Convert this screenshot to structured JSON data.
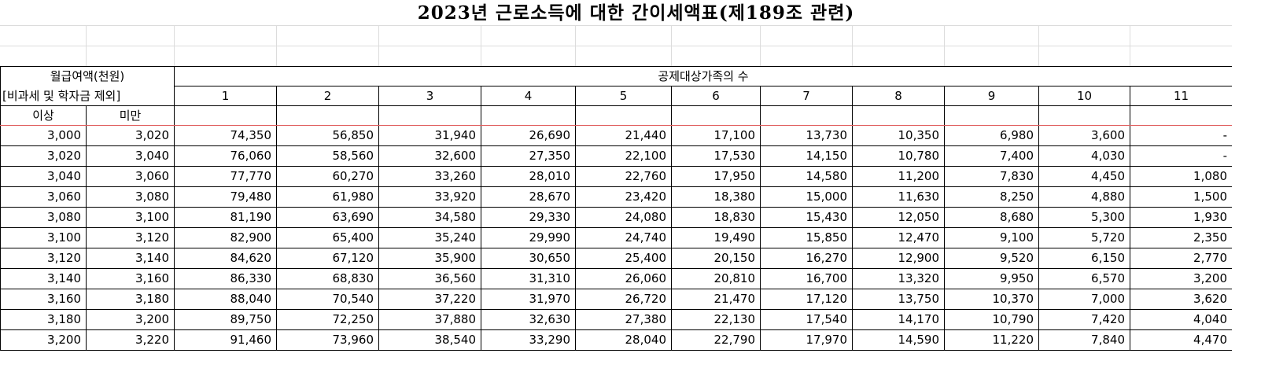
{
  "title": "2023년 근로소득에 대한 간이세액표(제189조 관련)",
  "header": {
    "wage_label_line1": "월급여액(천원)",
    "wage_label_line2": "[비과세 및 학자금 제외]",
    "dependents_label": "공제대상가족의 수",
    "from_label": "이상",
    "to_label": "미만",
    "dependent_counts": [
      "1",
      "2",
      "3",
      "4",
      "5",
      "6",
      "7",
      "8",
      "9",
      "10",
      "11"
    ]
  },
  "rows": [
    {
      "from": "3,000",
      "to": "3,020",
      "taxes": [
        "74,350",
        "56,850",
        "31,940",
        "26,690",
        "21,440",
        "17,100",
        "13,730",
        "10,350",
        "6,980",
        "3,600",
        "-"
      ]
    },
    {
      "from": "3,020",
      "to": "3,040",
      "taxes": [
        "76,060",
        "58,560",
        "32,600",
        "27,350",
        "22,100",
        "17,530",
        "14,150",
        "10,780",
        "7,400",
        "4,030",
        "-"
      ]
    },
    {
      "from": "3,040",
      "to": "3,060",
      "taxes": [
        "77,770",
        "60,270",
        "33,260",
        "28,010",
        "22,760",
        "17,950",
        "14,580",
        "11,200",
        "7,830",
        "4,450",
        "1,080"
      ]
    },
    {
      "from": "3,060",
      "to": "3,080",
      "taxes": [
        "79,480",
        "61,980",
        "33,920",
        "28,670",
        "23,420",
        "18,380",
        "15,000",
        "11,630",
        "8,250",
        "4,880",
        "1,500"
      ]
    },
    {
      "from": "3,080",
      "to": "3,100",
      "taxes": [
        "81,190",
        "63,690",
        "34,580",
        "29,330",
        "24,080",
        "18,830",
        "15,430",
        "12,050",
        "8,680",
        "5,300",
        "1,930"
      ]
    },
    {
      "from": "3,100",
      "to": "3,120",
      "taxes": [
        "82,900",
        "65,400",
        "35,240",
        "29,990",
        "24,740",
        "19,490",
        "15,850",
        "12,470",
        "9,100",
        "5,720",
        "2,350"
      ]
    },
    {
      "from": "3,120",
      "to": "3,140",
      "taxes": [
        "84,620",
        "67,120",
        "35,900",
        "30,650",
        "25,400",
        "20,150",
        "16,270",
        "12,900",
        "9,520",
        "6,150",
        "2,770"
      ]
    },
    {
      "from": "3,140",
      "to": "3,160",
      "taxes": [
        "86,330",
        "68,830",
        "36,560",
        "31,310",
        "26,060",
        "20,810",
        "16,700",
        "13,320",
        "9,950",
        "6,570",
        "3,200"
      ]
    },
    {
      "from": "3,160",
      "to": "3,180",
      "taxes": [
        "88,040",
        "70,540",
        "37,220",
        "31,970",
        "26,720",
        "21,470",
        "17,120",
        "13,750",
        "10,370",
        "7,000",
        "3,620"
      ]
    },
    {
      "from": "3,180",
      "to": "3,200",
      "taxes": [
        "89,750",
        "72,250",
        "37,880",
        "32,630",
        "27,380",
        "22,130",
        "17,540",
        "14,170",
        "10,790",
        "7,420",
        "4,040"
      ]
    },
    {
      "from": "3,200",
      "to": "3,220",
      "taxes": [
        "91,460",
        "73,960",
        "38,540",
        "33,290",
        "28,040",
        "22,790",
        "17,970",
        "14,590",
        "11,220",
        "7,840",
        "4,470"
      ]
    }
  ]
}
